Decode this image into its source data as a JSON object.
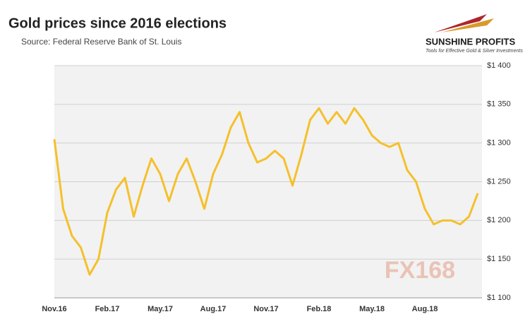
{
  "chart_data": {
    "type": "line",
    "title": "Gold prices since 2016 elections",
    "subtitle": "Source: Federal Reserve Bank of St. Louis",
    "logo": {
      "name": "SUNSHINE PROFITS",
      "tagline": "Tools for Effective Gold & Silver Investments"
    },
    "watermark": "FX168",
    "categories": [
      "Nov.16",
      null,
      null,
      null,
      null,
      null,
      "Feb.17",
      null,
      null,
      null,
      null,
      null,
      "May.17",
      null,
      null,
      null,
      null,
      null,
      "Aug.17",
      null,
      null,
      null,
      null,
      null,
      "Nov.17",
      null,
      null,
      null,
      null,
      null,
      "Feb.18",
      null,
      null,
      null,
      null,
      null,
      "May.18",
      null,
      null,
      null,
      null,
      null,
      "Aug.18",
      null,
      null,
      null,
      null,
      null,
      null
    ],
    "series": [
      {
        "name": "Gold price",
        "color": "#f5c02c",
        "values": [
          1305,
          1215,
          1180,
          1165,
          1130,
          1150,
          1210,
          1240,
          1255,
          1205,
          1245,
          1280,
          1260,
          1225,
          1260,
          1280,
          1250,
          1215,
          1260,
          1285,
          1320,
          1340,
          1300,
          1275,
          1280,
          1290,
          1280,
          1245,
          1285,
          1330,
          1345,
          1325,
          1340,
          1325,
          1345,
          1330,
          1310,
          1300,
          1295,
          1300,
          1265,
          1250,
          1215,
          1195,
          1200,
          1200,
          1195,
          1205,
          1235
        ]
      }
    ],
    "ylim": [
      1100,
      1400
    ],
    "yticks": [
      {
        "value": 1100,
        "label": "$1 100"
      },
      {
        "value": 1150,
        "label": "$1 150"
      },
      {
        "value": 1200,
        "label": "$1 200"
      },
      {
        "value": 1250,
        "label": "$1 250"
      },
      {
        "value": 1300,
        "label": "$1 300"
      },
      {
        "value": 1350,
        "label": "$1 350"
      },
      {
        "value": 1400,
        "label": "$1 400"
      }
    ],
    "grid": true
  }
}
